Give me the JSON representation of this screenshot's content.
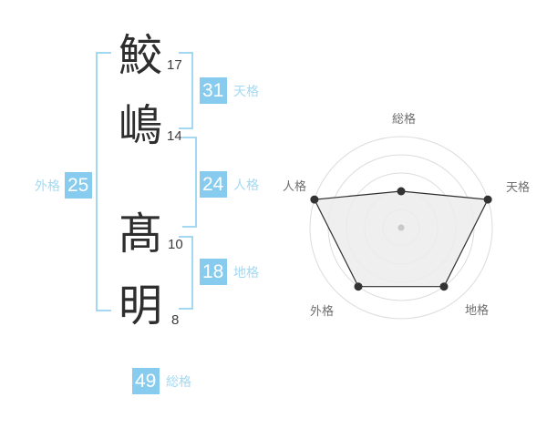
{
  "name": {
    "chars": [
      {
        "char": "鮫",
        "strokes": "17"
      },
      {
        "char": "嶋",
        "strokes": "14"
      },
      {
        "char": "髙",
        "strokes": "10"
      },
      {
        "char": "明",
        "strokes": "8"
      }
    ]
  },
  "scores": {
    "tenkaku": {
      "label": "天格",
      "value": "31"
    },
    "jinkaku": {
      "label": "人格",
      "value": "24"
    },
    "chikaku": {
      "label": "地格",
      "value": "18"
    },
    "gaikaku": {
      "label": "外格",
      "value": "25"
    },
    "soukaku": {
      "label": "総格",
      "value": "49"
    }
  },
  "colors": {
    "badge_blue": "#87CCEE",
    "label_blue": "#A3D9F2",
    "bracket_blue": "#A3D8F2",
    "ink": "#333333",
    "ring_gray": "#DCDCDC",
    "polygon_fill": "#ECECEC",
    "polygon_stroke": "#2E2E2E",
    "center_dot": "#C8C8C8",
    "axis_label": "#6E6E6E"
  },
  "chart_data": {
    "type": "radar",
    "title": "",
    "categories": [
      "総格",
      "天格",
      "地格",
      "外格",
      "人格"
    ],
    "values": [
      2,
      5,
      4,
      4,
      5
    ],
    "max": 5,
    "rings": 5,
    "start_angle_deg": 90,
    "clockwise": true,
    "grid": "circular",
    "legend": false
  }
}
